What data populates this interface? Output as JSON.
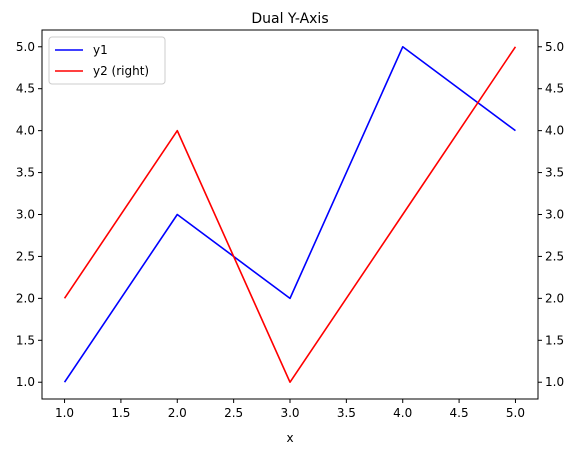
{
  "chart_data": {
    "type": "line",
    "title": "Dual Y-Axis",
    "xlabel": "x",
    "ylabel": "",
    "ylabel_right": "",
    "x": [
      1,
      2,
      3,
      4,
      5
    ],
    "xlim": [
      0.8,
      5.2
    ],
    "ylim": [
      0.8,
      5.2
    ],
    "ylim_right": [
      0.8,
      5.2
    ],
    "x_ticks": [
      "1.0",
      "1.5",
      "2.0",
      "2.5",
      "3.0",
      "3.5",
      "4.0",
      "4.5",
      "5.0"
    ],
    "y_ticks": [
      "1.0",
      "1.5",
      "2.0",
      "2.5",
      "3.0",
      "3.5",
      "4.0",
      "4.5",
      "5.0"
    ],
    "y_ticks_right": [
      "1.0",
      "1.5",
      "2.0",
      "2.5",
      "3.0",
      "3.5",
      "4.0",
      "4.5",
      "5.0"
    ],
    "grid": false,
    "legend_position": "top-left",
    "series": [
      {
        "name": "y1",
        "axis": "left",
        "color": "#0000ff",
        "values": [
          1,
          3,
          2,
          5,
          4
        ]
      },
      {
        "name": "y2 (right)",
        "axis": "right",
        "color": "#ff0000",
        "values": [
          2,
          4,
          1,
          3,
          5
        ]
      }
    ]
  }
}
